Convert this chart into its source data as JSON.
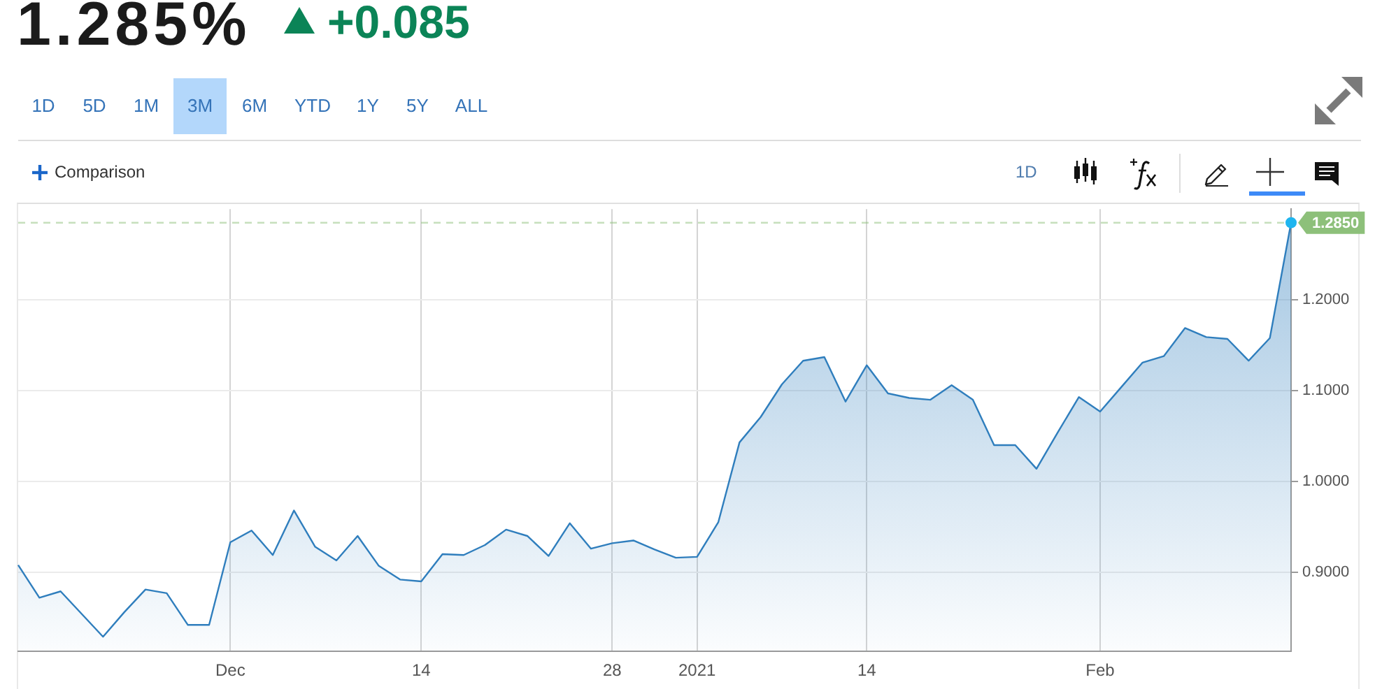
{
  "chart_data": {
    "type": "area",
    "title": "1.285%",
    "subtitle": "+0.085",
    "categories": [
      null,
      null,
      null,
      null,
      null,
      null,
      null,
      null,
      null,
      null,
      "Dec",
      null,
      null,
      null,
      null,
      null,
      null,
      null,
      null,
      "14",
      null,
      null,
      null,
      null,
      null,
      null,
      null,
      null,
      "28",
      null,
      null,
      null,
      "2021",
      null,
      null,
      null,
      null,
      null,
      null,
      null,
      "14",
      null,
      null,
      null,
      null,
      null,
      null,
      null,
      null,
      null,
      null,
      "Feb",
      null,
      null,
      null,
      null,
      null,
      null,
      null,
      null,
      null
    ],
    "series": [
      {
        "color": "#2f7ebd",
        "values": [
          0.908,
          0.872,
          0.879,
          0.854,
          0.829,
          0.856,
          0.881,
          0.877,
          0.842,
          0.842,
          0.933,
          0.946,
          0.919,
          0.968,
          0.928,
          0.913,
          0.94,
          0.907,
          0.892,
          0.89,
          0.92,
          0.919,
          0.93,
          0.947,
          0.94,
          0.918,
          0.954,
          0.926,
          0.932,
          0.935,
          0.925,
          0.916,
          0.917,
          0.955,
          1.043,
          1.071,
          1.107,
          1.133,
          1.137,
          1.088,
          1.128,
          1.097,
          1.092,
          1.09,
          1.106,
          1.09,
          1.04,
          1.04,
          1.014,
          1.054,
          1.093,
          1.077,
          1.104,
          1.131,
          1.138,
          1.169,
          1.159,
          1.157,
          1.133,
          1.158,
          1.285
        ]
      },
      {
        "type": "scatter",
        "color": "#1fb5ef",
        "values": [
          null,
          null,
          null,
          null,
          null,
          null,
          null,
          null,
          null,
          null,
          null,
          null,
          null,
          null,
          null,
          null,
          null,
          null,
          null,
          null,
          null,
          null,
          null,
          null,
          null,
          null,
          null,
          null,
          null,
          null,
          null,
          null,
          null,
          null,
          null,
          null,
          null,
          null,
          null,
          null,
          null,
          null,
          null,
          null,
          null,
          null,
          null,
          null,
          null,
          null,
          null,
          null,
          null,
          null,
          null,
          null,
          null,
          null,
          null,
          null,
          1.285
        ]
      }
    ],
    "ylim": [
      0.813,
      1.3
    ],
    "yticks": [
      {
        "value": 0.9,
        "label": "0.9000"
      },
      {
        "value": 1.0,
        "label": "1.0000"
      },
      {
        "value": 1.1,
        "label": "1.1000"
      },
      {
        "value": 1.2,
        "label": "1.2000"
      }
    ],
    "grid": true,
    "ref_lines": [
      {
        "axis": "y",
        "value": 1.285,
        "label": "1.2850",
        "color": "#8dc07a",
        "line_style": "dashed"
      }
    ],
    "annotations": [
      "1D",
      "5D",
      "1M",
      "3M",
      "6M",
      "YTD",
      "1Y",
      "5Y",
      "ALL",
      "Comparison",
      "1D"
    ]
  }
}
